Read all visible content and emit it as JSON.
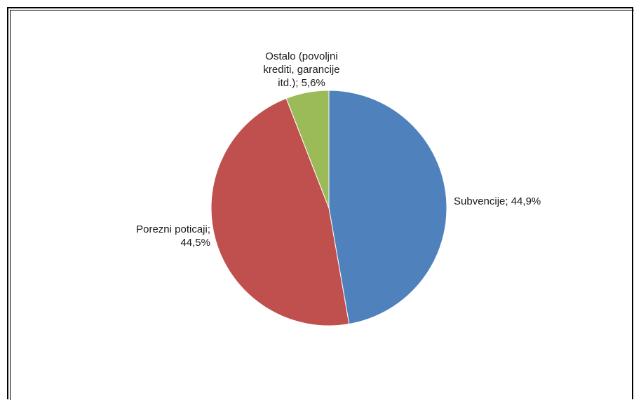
{
  "chart_data": {
    "type": "pie",
    "slices": [
      {
        "label": "Subvencije; 44,9%",
        "value": 44.9,
        "color": "#4f81bd"
      },
      {
        "label": "Porezni poticaji;\n44,5%",
        "value": 44.5,
        "color": "#c0504d"
      },
      {
        "label": "Ostalo (povoljni\nkrediti, garancije\nitd.); 5,6%",
        "value": 5.6,
        "color": "#9bbb59"
      }
    ],
    "start": "top",
    "direction": "clockwise",
    "legend": "none"
  }
}
